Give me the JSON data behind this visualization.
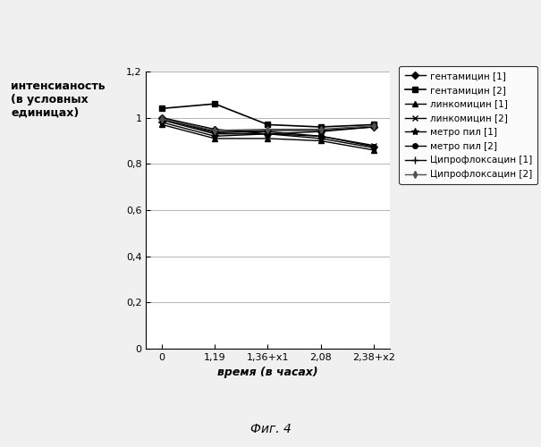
{
  "x_positions": [
    0,
    1,
    2,
    3,
    4
  ],
  "x_labels": [
    "0",
    "1,19",
    "1,36+x1",
    "2,08",
    "2,38+x2"
  ],
  "series": [
    {
      "label": "гентамицин [1]",
      "values": [
        1.0,
        0.95,
        0.93,
        0.94,
        0.96
      ],
      "color": "#000000",
      "marker": "D",
      "markersize": 4,
      "linewidth": 1.0
    },
    {
      "label": "гентамицин [2]",
      "values": [
        1.04,
        1.06,
        0.97,
        0.96,
        0.97
      ],
      "color": "#000000",
      "marker": "s",
      "markersize": 5,
      "linewidth": 1.2
    },
    {
      "label": "линкомицин [1]",
      "values": [
        0.97,
        0.91,
        0.91,
        0.9,
        0.86
      ],
      "color": "#000000",
      "marker": "^",
      "markersize": 5,
      "linewidth": 1.0
    },
    {
      "label": "линкомицин [2]",
      "values": [
        0.99,
        0.93,
        0.93,
        0.92,
        0.88
      ],
      "color": "#000000",
      "marker": "x",
      "markersize": 5,
      "linewidth": 1.0
    },
    {
      "label": "метро пил [1]",
      "values": [
        0.98,
        0.92,
        0.93,
        0.91,
        0.87
      ],
      "color": "#000000",
      "marker": "*",
      "markersize": 6,
      "linewidth": 1.0
    },
    {
      "label": "метро пил [2]",
      "values": [
        0.995,
        0.935,
        0.94,
        0.92,
        0.875
      ],
      "color": "#000000",
      "marker": "o",
      "markersize": 4,
      "linewidth": 1.0
    },
    {
      "label": "Ципрофлоксацин [1]",
      "values": [
        1.0,
        0.94,
        0.945,
        0.945,
        0.96
      ],
      "color": "#000000",
      "marker": "+",
      "markersize": 6,
      "linewidth": 1.0
    },
    {
      "label": "Ципрофлоксацин [2]",
      "values": [
        0.995,
        0.945,
        0.95,
        0.95,
        0.965
      ],
      "color": "#505050",
      "marker": "d",
      "markersize": 4,
      "linewidth": 1.0
    }
  ],
  "ylabel_lines": [
    "интенсианость",
    "(в условных",
    "единицах)"
  ],
  "xlabel": "время (в часах)",
  "figcaption": "Фиг. 4",
  "ylim": [
    0,
    1.2
  ],
  "yticks": [
    0,
    0.2,
    0.4,
    0.6,
    0.8,
    1.0,
    1.2
  ],
  "background_color": "#f0f0f0",
  "plot_bg_color": "#ffffff",
  "grid_color": "#aaaaaa"
}
